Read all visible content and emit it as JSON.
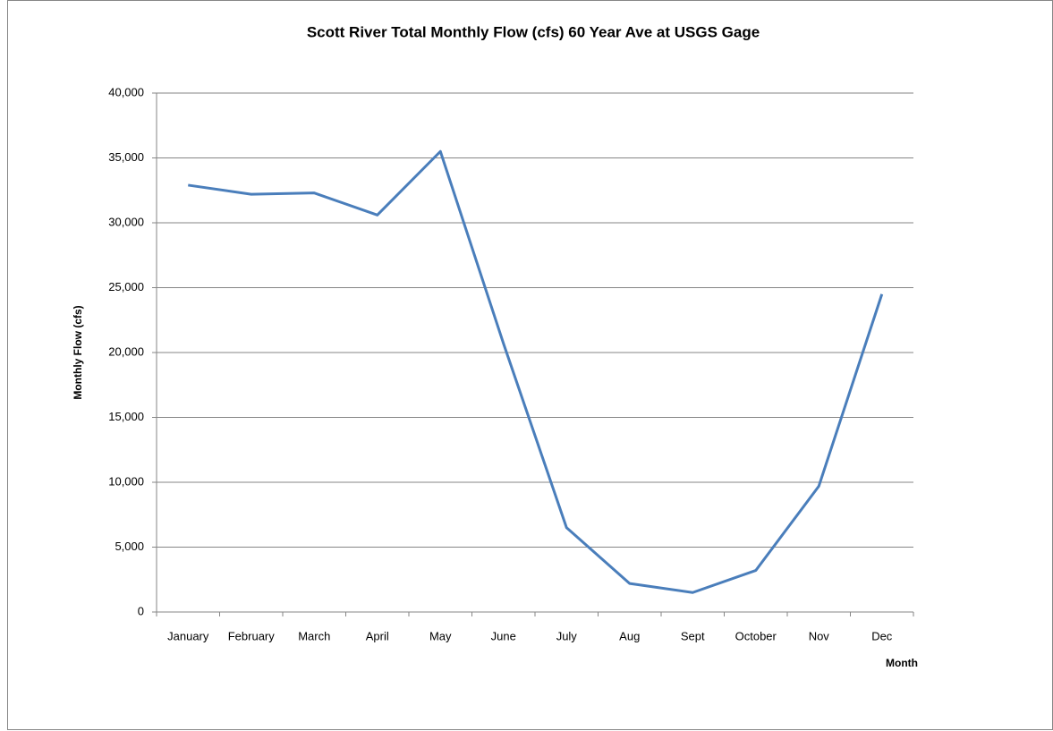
{
  "chart_data": {
    "type": "line",
    "title": "Scott River Total Monthly Flow (cfs) 60 Year Ave at USGS Gage",
    "x_label": "Month",
    "y_label": "Monthly Flow (cfs)",
    "categories": [
      "January",
      "February",
      "March",
      "April",
      "May",
      "June",
      "July",
      "Aug",
      "Sept",
      "October",
      "Nov",
      "Dec"
    ],
    "series": [
      {
        "name": "Monthly Flow",
        "color": "#4a7ebb",
        "values": [
          32900,
          32200,
          32300,
          30600,
          35500,
          20700,
          6500,
          2200,
          1500,
          3200,
          9700,
          24500
        ]
      }
    ],
    "ylim": [
      0,
      40000
    ],
    "yticks": [
      0,
      {
        "value": 5000,
        "label": "5,000"
      },
      {
        "value": 10000,
        "label": "10,000"
      },
      {
        "value": 15000,
        "label": "15,000"
      },
      {
        "value": 20000,
        "label": "20,000"
      },
      {
        "value": 25000,
        "label": "25,000"
      },
      {
        "value": 30000,
        "label": "30,000"
      },
      {
        "value": 35000,
        "label": "35,000"
      },
      {
        "value": 40000,
        "label": "40,000"
      }
    ],
    "grid": true
  }
}
